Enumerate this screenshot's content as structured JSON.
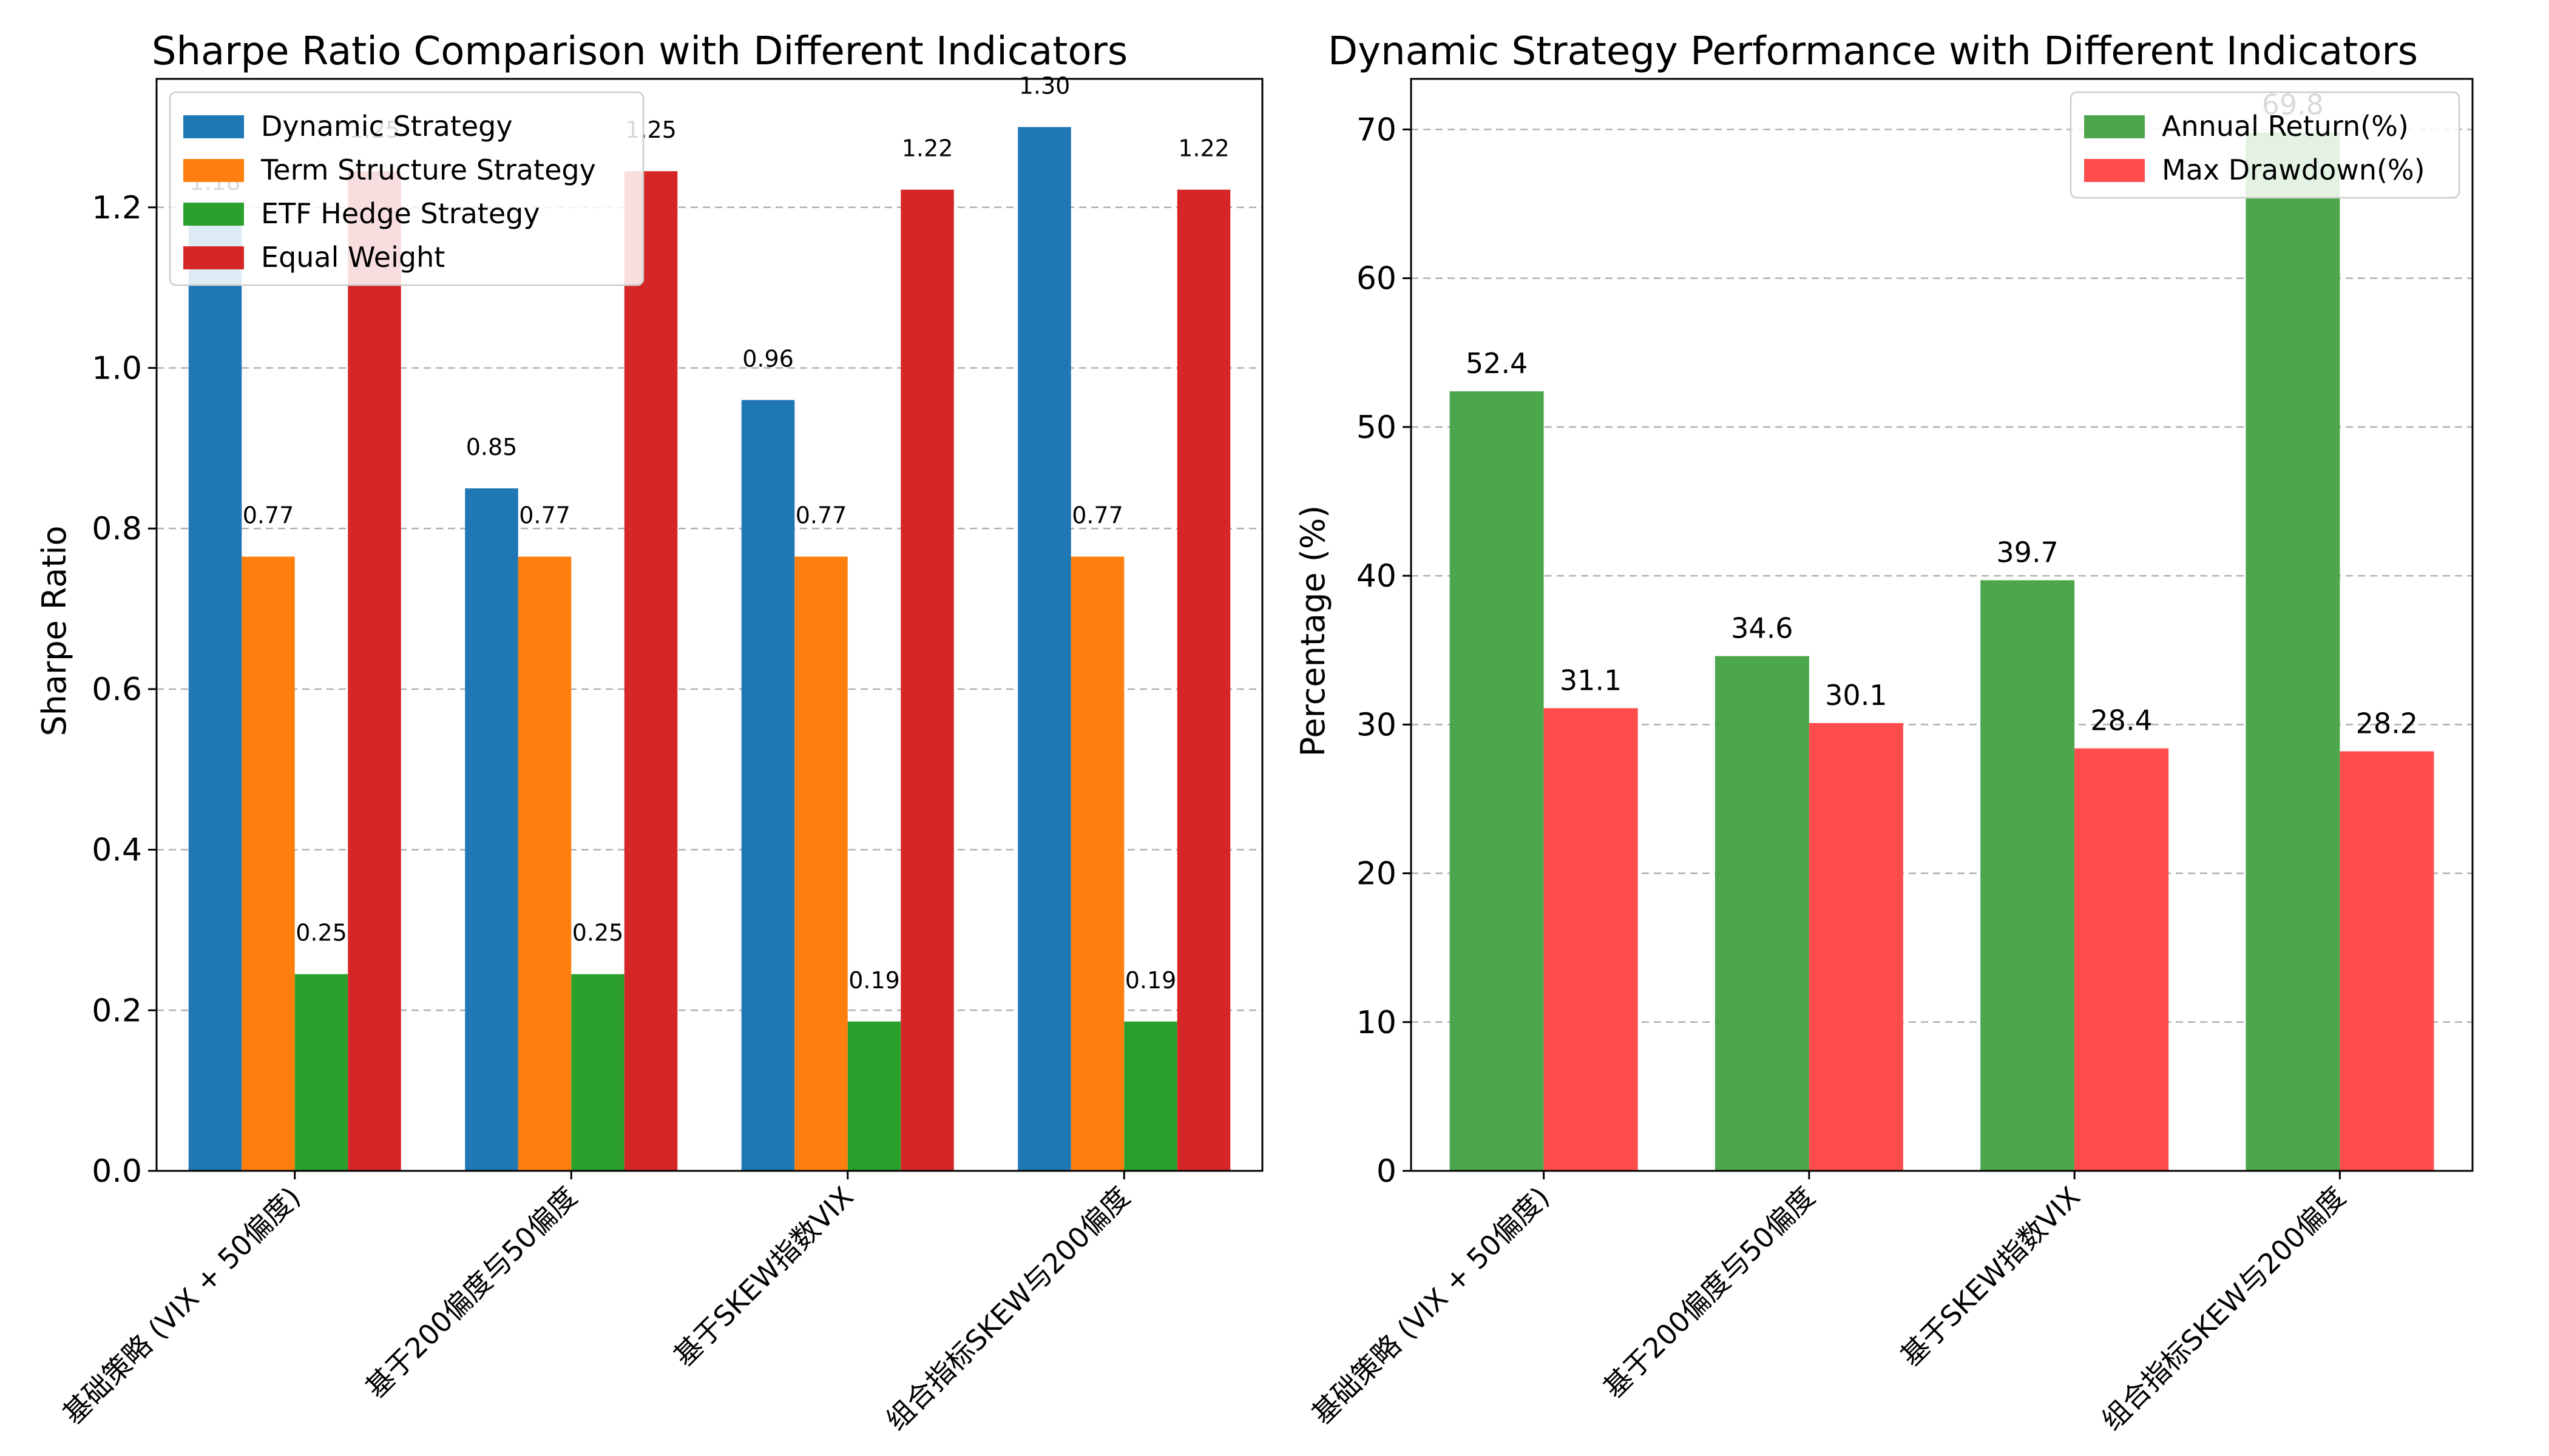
{
  "chart_data": [
    {
      "type": "bar",
      "title": "Sharpe Ratio Comparison with Different Indicators",
      "xlabel": "",
      "ylabel": "Sharpe Ratio",
      "categories": [
        "基础策略 (VIX + 50偏度)",
        "基于200偏度与50偏度",
        "基于SKEW指数VIX",
        "组合指标SKEW与200偏度"
      ],
      "ylim": [
        0,
        1.36
      ],
      "yticks": [
        "0.0",
        "0.2",
        "0.4",
        "0.6",
        "0.8",
        "1.0",
        "1.2"
      ],
      "grid": "y-dashed",
      "legend_position": "upper-left",
      "series": [
        {
          "name": "Dynamic Strategy",
          "color": "#1f77b4",
          "values": [
            1.18,
            0.85,
            0.96,
            1.3
          ],
          "labels": [
            "1.18",
            "0.85",
            "0.96",
            "1.30"
          ]
        },
        {
          "name": "Term Structure Strategy",
          "color": "#ff7f0e",
          "values": [
            0.765,
            0.765,
            0.765,
            0.765
          ],
          "labels": [
            "0.77",
            "0.77",
            "0.77",
            "0.77"
          ]
        },
        {
          "name": "ETF Hedge Strategy",
          "color": "#2ca02c",
          "values": [
            0.245,
            0.245,
            0.186,
            0.186
          ],
          "labels": [
            "0.25",
            "0.25",
            "0.19",
            "0.19"
          ]
        },
        {
          "name": "Equal Weight",
          "color": "#d62728",
          "values": [
            1.245,
            1.245,
            1.222,
            1.222
          ],
          "labels": [
            "1.25",
            "1.25",
            "1.22",
            "1.22"
          ]
        }
      ]
    },
    {
      "type": "bar",
      "title": "Dynamic Strategy Performance with Different Indicators",
      "xlabel": "",
      "ylabel": "Percentage (%)",
      "categories": [
        "基础策略 (VIX + 50偏度)",
        "基于200偏度与50偏度",
        "基于SKEW指数VIX",
        "组合指标SKEW与200偏度"
      ],
      "ylim": [
        0,
        73.4
      ],
      "yticks": [
        "0",
        "10",
        "20",
        "30",
        "40",
        "50",
        "60",
        "70"
      ],
      "grid": "y-dashed",
      "legend_position": "upper-right",
      "series": [
        {
          "name": "Annual Return(%)",
          "color": "#4ca64c",
          "values": [
            52.4,
            34.6,
            39.7,
            69.8
          ],
          "labels": [
            "52.4",
            "34.6",
            "39.7",
            "69.8"
          ]
        },
        {
          "name": "Max Drawdown(%)",
          "color": "#ff4c4c",
          "values": [
            31.1,
            30.1,
            28.4,
            28.2
          ],
          "labels": [
            "31.1",
            "30.1",
            "28.4",
            "28.2"
          ]
        }
      ]
    }
  ]
}
